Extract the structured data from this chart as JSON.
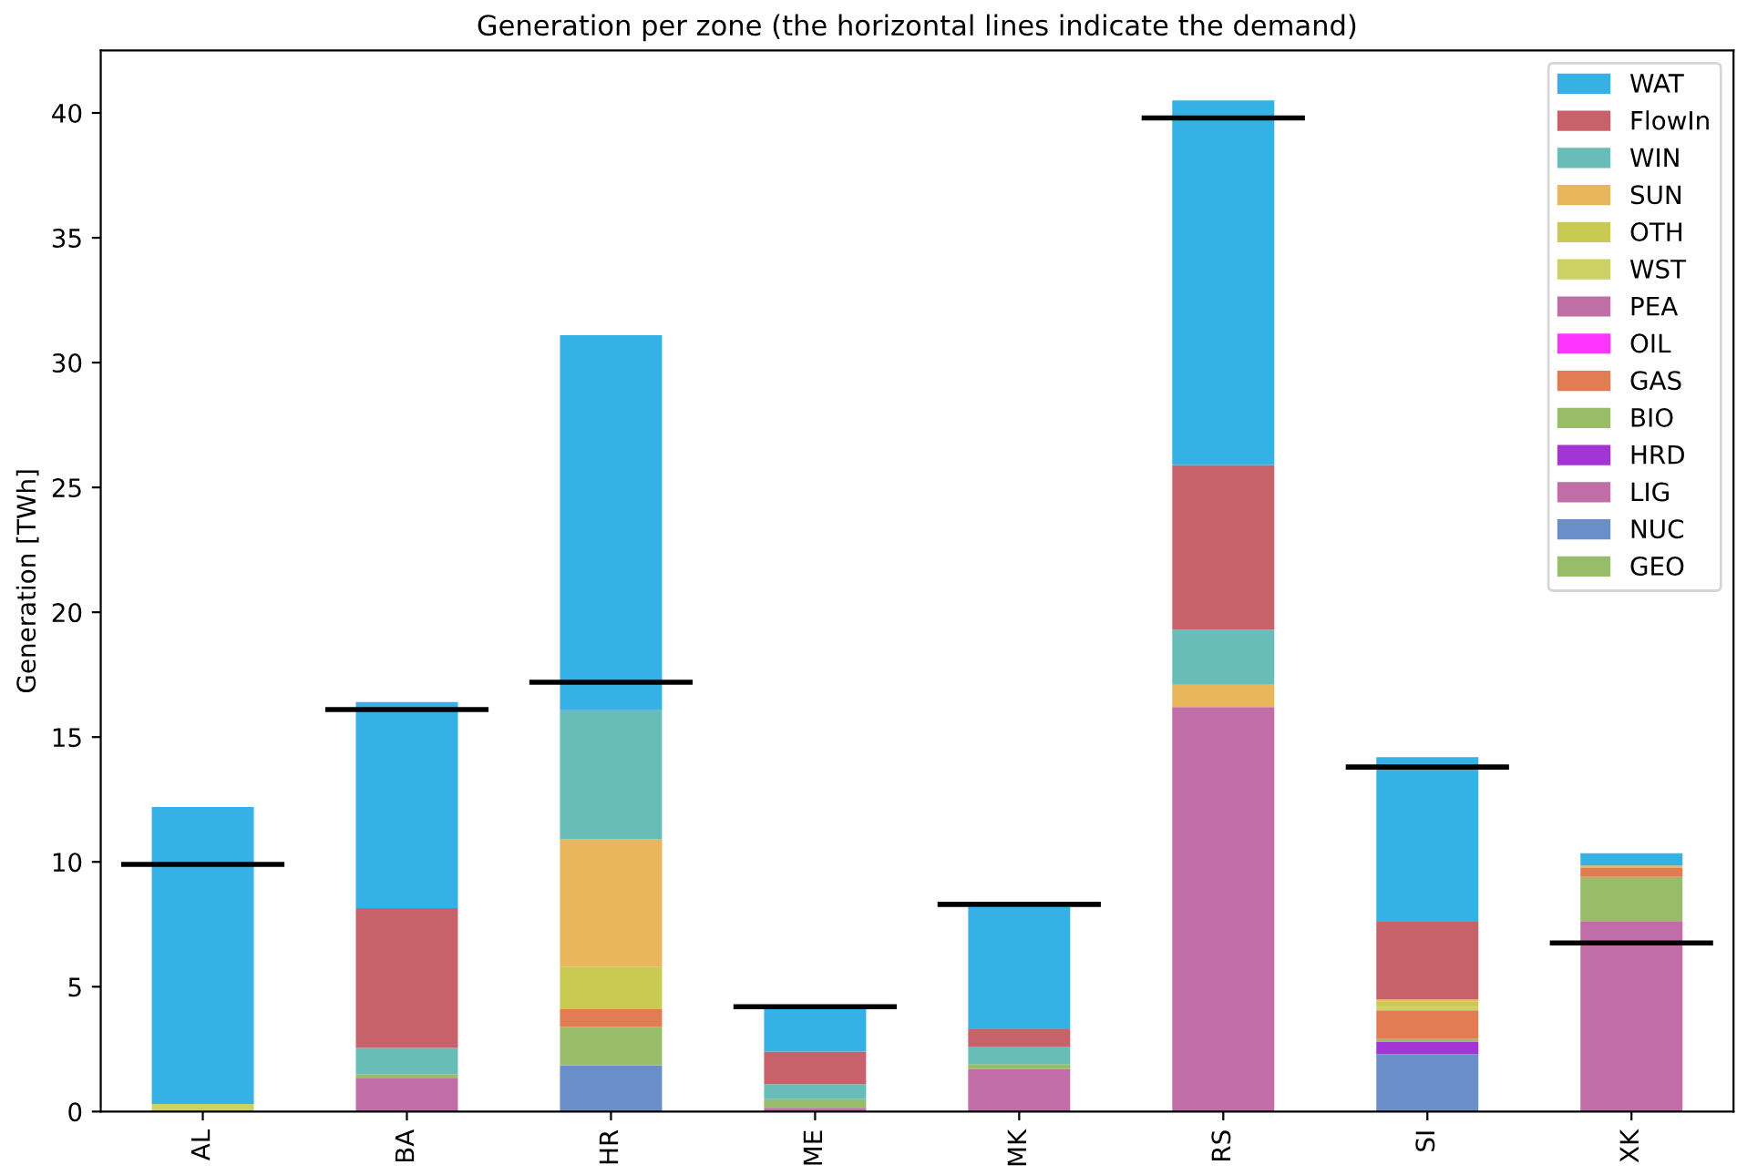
{
  "chart_data": {
    "type": "bar",
    "stacked": true,
    "title": "Generation per zone (the horizontal lines indicate the demand)",
    "ylabel": "Generation [TWh]",
    "categories": [
      "AL",
      "BA",
      "HR",
      "ME",
      "MK",
      "RS",
      "SI",
      "XK"
    ],
    "ylim": [
      0,
      42.5
    ],
    "yticks": [
      0,
      5,
      10,
      15,
      20,
      25,
      30,
      35,
      40
    ],
    "legend": "top right",
    "grid": false,
    "series": [
      {
        "name": "GEO",
        "color": "#97bd6b",
        "values": [
          null,
          null,
          null,
          null,
          null,
          null,
          null,
          null
        ]
      },
      {
        "name": "NUC",
        "color": "#6a8fc8",
        "values": [
          null,
          null,
          1.85,
          null,
          null,
          null,
          2.3,
          null
        ]
      },
      {
        "name": "LIG",
        "color": "#c16ea8",
        "values": [
          null,
          1.35,
          null,
          0.15,
          1.7,
          16.2,
          null,
          7.6
        ]
      },
      {
        "name": "HRD",
        "color": "#a235d4",
        "values": [
          null,
          null,
          null,
          null,
          null,
          null,
          0.5,
          null
        ]
      },
      {
        "name": "BIO",
        "color": "#97bd6b",
        "values": [
          null,
          0.15,
          1.55,
          0.35,
          0.2,
          null,
          0.1,
          1.8
        ]
      },
      {
        "name": "GAS",
        "color": "#e27c52",
        "values": [
          null,
          null,
          0.7,
          null,
          null,
          null,
          1.15,
          0.35
        ]
      },
      {
        "name": "OIL",
        "color": "#ff33ff",
        "values": [
          null,
          null,
          null,
          null,
          null,
          null,
          null,
          null
        ]
      },
      {
        "name": "PEA",
        "color": "#c06fa6",
        "values": [
          null,
          null,
          null,
          null,
          null,
          null,
          null,
          null
        ]
      },
      {
        "name": "WST",
        "color": "#cbd162",
        "values": [
          0.3,
          null,
          null,
          null,
          null,
          null,
          0.15,
          null
        ]
      },
      {
        "name": "OTH",
        "color": "#c8ca52",
        "values": [
          null,
          null,
          1.7,
          null,
          null,
          null,
          0.2,
          null
        ]
      },
      {
        "name": "SUN",
        "color": "#e8b75b",
        "values": [
          null,
          null,
          5.1,
          null,
          null,
          0.9,
          0.1,
          0.1
        ]
      },
      {
        "name": "WIN",
        "color": "#68bdb8",
        "values": [
          null,
          1.05,
          5.2,
          0.6,
          0.7,
          2.2,
          null,
          null
        ]
      },
      {
        "name": "FlowIn",
        "color": "#c8626a",
        "values": [
          null,
          5.6,
          null,
          1.3,
          0.7,
          6.6,
          3.1,
          null
        ]
      },
      {
        "name": "WAT",
        "color": "#35b1e5",
        "values": [
          11.9,
          8.25,
          15.0,
          1.75,
          4.9,
          14.6,
          6.6,
          0.5
        ]
      }
    ],
    "ref_lines": [
      {
        "axis": "y",
        "value": 9.9,
        "color": "#000000"
      },
      {
        "axis": "y",
        "value": 16.1,
        "color": "#000000"
      },
      {
        "axis": "y",
        "value": 17.2,
        "color": "#000000"
      },
      {
        "axis": "y",
        "value": 4.2,
        "color": "#000000"
      },
      {
        "axis": "y",
        "value": 8.3,
        "color": "#000000"
      },
      {
        "axis": "y",
        "value": 39.8,
        "color": "#000000"
      },
      {
        "axis": "y",
        "value": 13.8,
        "color": "#000000"
      },
      {
        "axis": "y",
        "value": 6.75,
        "color": "#000000"
      }
    ]
  }
}
